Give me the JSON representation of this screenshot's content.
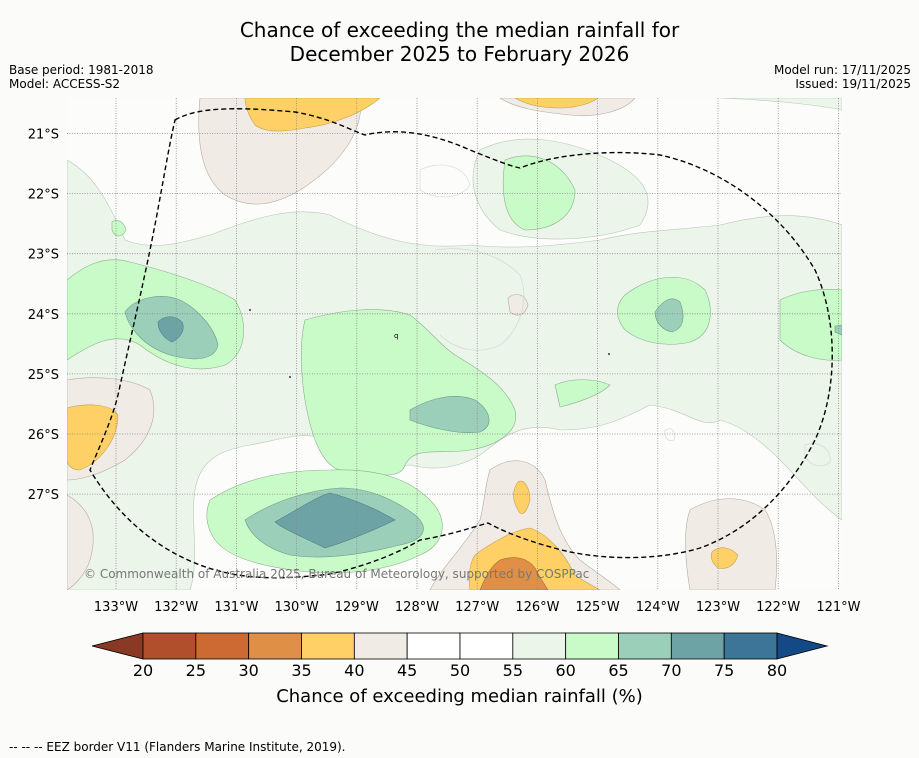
{
  "title": {
    "line1": "Chance of exceeding the median rainfall for",
    "line2": "December 2025 to February 2026"
  },
  "meta": {
    "base_period": "Base period: 1981-2018",
    "model": "Model: ACCESS-S2",
    "model_run": "Model run: 17/11/2025",
    "issued": "Issued: 19/11/2025"
  },
  "map": {
    "lat_labels": [
      "21°S",
      "22°S",
      "23°S",
      "24°S",
      "25°S",
      "26°S",
      "27°S"
    ],
    "lon_labels": [
      "133°W",
      "132°W",
      "131°W",
      "130°W",
      "129°W",
      "128°W",
      "127°W",
      "126°W",
      "125°W",
      "124°W",
      "123°W",
      "122°W",
      "121°W"
    ],
    "copyright": "© Commonwealth of Australia 2025, Bureau of Meteorology, supported by COSPPac"
  },
  "colorbar": {
    "ticks": [
      "20",
      "25",
      "30",
      "35",
      "40",
      "45",
      "50",
      "55",
      "60",
      "65",
      "70",
      "75",
      "80"
    ],
    "colors": [
      "#8a3a24",
      "#b14e2b",
      "#cd6a33",
      "#e09046",
      "#ffd066",
      "#f1ebe6",
      "#ffffff",
      "#ffffff",
      "#ebf5ea",
      "#c9fbc9",
      "#9ccfb9",
      "#6ea3a6",
      "#3d7598",
      "#134a86"
    ],
    "label": "Chance of exceeding median rainfall (%)"
  },
  "footnote": "-- -- -- EEZ border V11 (Flanders Marine Institute, 2019)."
}
